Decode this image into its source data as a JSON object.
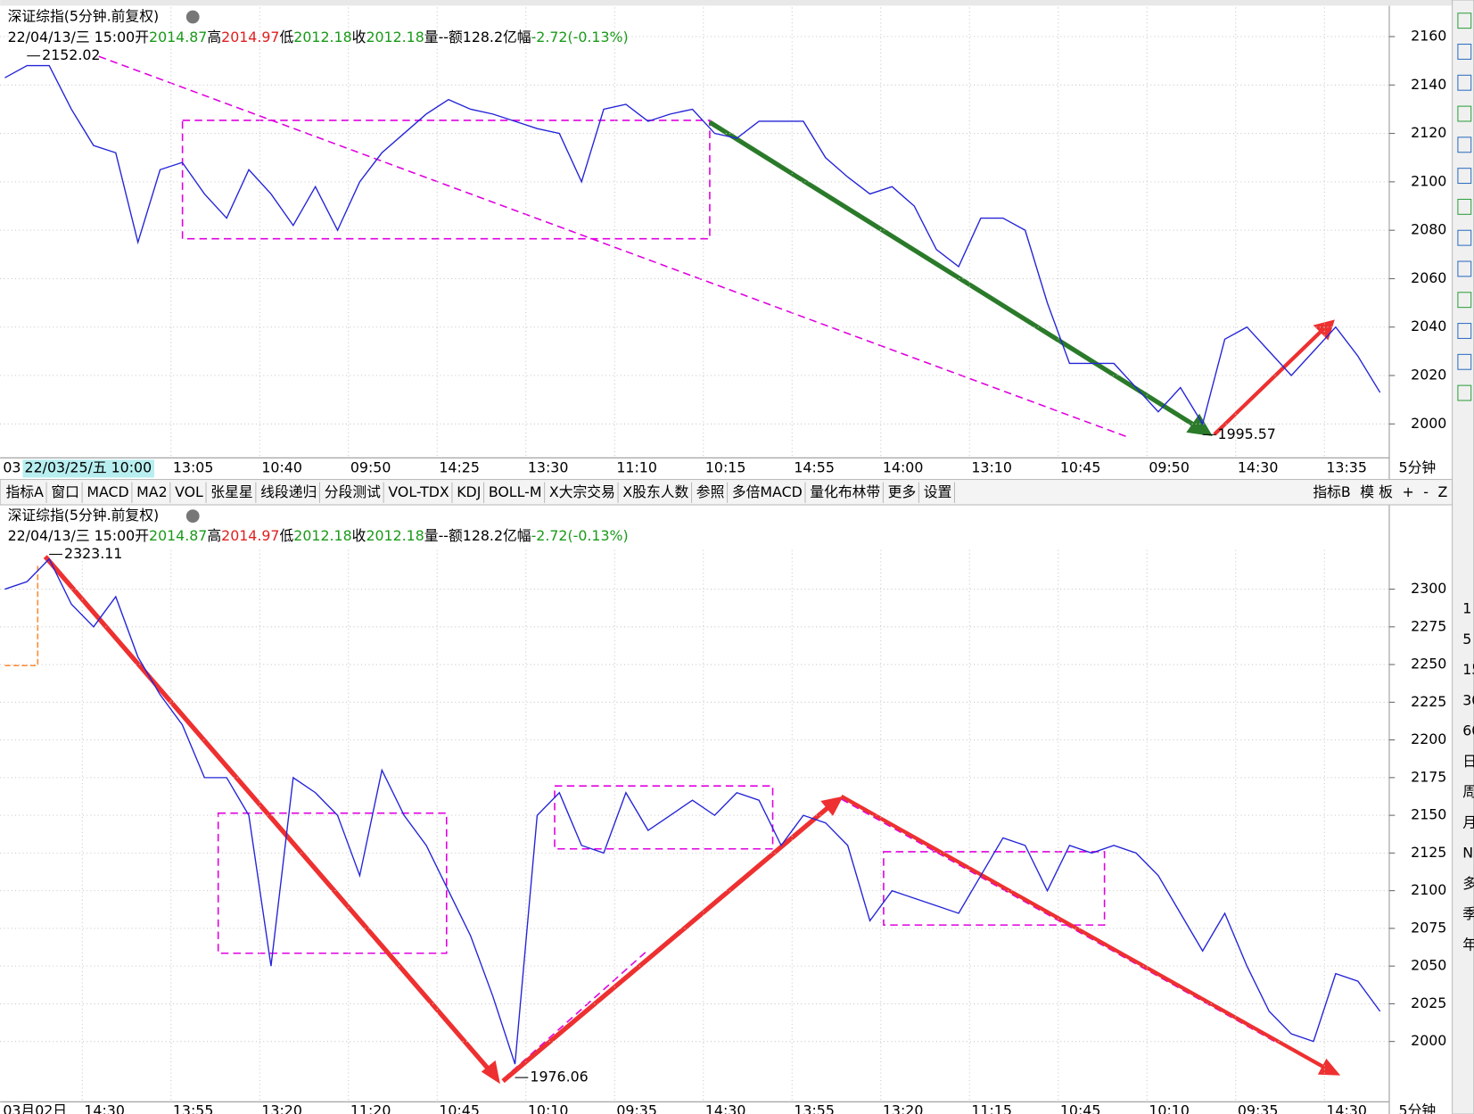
{
  "chart_data": [
    {
      "type": "line",
      "title": "深证综指(5分钟.前复权)",
      "info": [
        {
          "text": "22/04/13/三 15:00",
          "color": "#000000"
        },
        {
          "text": "开",
          "color": "#000000"
        },
        {
          "text": "2014.87",
          "color": "#1a9a1a"
        },
        {
          "text": "高",
          "color": "#000000"
        },
        {
          "text": "2014.97",
          "color": "#e02020"
        },
        {
          "text": "低",
          "color": "#000000"
        },
        {
          "text": "2012.18",
          "color": "#1a9a1a"
        },
        {
          "text": "收",
          "color": "#000000"
        },
        {
          "text": "2012.18",
          "color": "#1a9a1a"
        },
        {
          "text": "量--",
          "color": "#000000"
        },
        {
          "text": "额128.2亿",
          "color": "#000000"
        },
        {
          "text": "幅",
          "color": "#000000"
        },
        {
          "text": "-2.72(-0.13%)",
          "color": "#1a9a1a"
        }
      ],
      "cursor_label": "22/03/25/五 10:00",
      "categories": [
        "03",
        null,
        null,
        null,
        null,
        null,
        null,
        null,
        "13:05",
        null,
        null,
        null,
        "10:40",
        null,
        null,
        null,
        "09:50",
        null,
        null,
        null,
        "14:25",
        null,
        null,
        null,
        "13:30",
        null,
        null,
        null,
        "11:10",
        null,
        null,
        null,
        "10:15",
        null,
        null,
        null,
        "14:55",
        null,
        null,
        null,
        "14:00",
        null,
        null,
        null,
        "13:10",
        null,
        null,
        null,
        "10:45",
        null,
        null,
        null,
        "09:50",
        null,
        null,
        null,
        "14:30",
        null,
        null,
        null,
        "13:35",
        null,
        null
      ],
      "values": [
        2143,
        2148,
        2148,
        2130,
        2115,
        2112,
        2075,
        2105,
        2108,
        2095,
        2085,
        2105,
        2095,
        2082,
        2098,
        2080,
        2100,
        2112,
        2120,
        2128,
        2134,
        2130,
        2128,
        2125,
        2122,
        2120,
        2100,
        2130,
        2132,
        2125,
        2128,
        2130,
        2120,
        2118,
        2125,
        2125,
        2125,
        2110,
        2102,
        2095,
        2098,
        2090,
        2072,
        2065,
        2085,
        2085,
        2080,
        2050,
        2025,
        2025,
        2025,
        2015,
        2005,
        2015,
        2000,
        2035,
        2040,
        2030,
        2020,
        2030,
        2040,
        2028,
        2013
      ],
      "color": "#2424d8",
      "ylim": [
        1986,
        2172
      ],
      "yticks": [
        2000,
        2020,
        2040,
        2060,
        2080,
        2100,
        2120,
        2140,
        2160
      ],
      "grid": true,
      "high_label": 2152.02,
      "low_label": 1995.57,
      "period_label": "5分钟"
    },
    {
      "type": "line",
      "title": "深证综指(5分钟.前复权)",
      "info": [
        {
          "text": "22/04/13/三 15:00",
          "color": "#000000"
        },
        {
          "text": "开",
          "color": "#000000"
        },
        {
          "text": "2014.87",
          "color": "#1a9a1a"
        },
        {
          "text": "高",
          "color": "#000000"
        },
        {
          "text": "2014.97",
          "color": "#e02020"
        },
        {
          "text": "低",
          "color": "#000000"
        },
        {
          "text": "2012.18",
          "color": "#1a9a1a"
        },
        {
          "text": "收",
          "color": "#000000"
        },
        {
          "text": "2012.18",
          "color": "#1a9a1a"
        },
        {
          "text": "量--",
          "color": "#000000"
        },
        {
          "text": "额128.2亿",
          "color": "#000000"
        },
        {
          "text": "幅",
          "color": "#000000"
        },
        {
          "text": "-2.72(-0.13%)",
          "color": "#1a9a1a"
        }
      ],
      "categories": [
        "03月02日",
        null,
        null,
        null,
        "14:30",
        null,
        null,
        null,
        "13:55",
        null,
        null,
        null,
        "13:20",
        null,
        null,
        null,
        "11:20",
        null,
        null,
        null,
        "10:45",
        null,
        null,
        null,
        "10:10",
        null,
        null,
        null,
        "09:35",
        null,
        null,
        null,
        "14:30",
        null,
        null,
        null,
        "13:55",
        null,
        null,
        null,
        "13:20",
        null,
        null,
        null,
        "11:15",
        null,
        null,
        null,
        "10:45",
        null,
        null,
        null,
        "10:10",
        null,
        null,
        null,
        "09:35",
        null,
        null,
        null,
        "14:30",
        null,
        null
      ],
      "values": [
        2300,
        2305,
        2320,
        2290,
        2275,
        2295,
        2255,
        2230,
        2210,
        2175,
        2175,
        2150,
        2050,
        2175,
        2165,
        2150,
        2110,
        2180,
        2150,
        2130,
        2100,
        2070,
        2030,
        1985,
        2150,
        2165,
        2130,
        2125,
        2165,
        2140,
        2150,
        2160,
        2150,
        2165,
        2160,
        2130,
        2150,
        2145,
        2130,
        2080,
        2100,
        2095,
        2090,
        2085,
        2110,
        2135,
        2130,
        2100,
        2130,
        2125,
        2130,
        2125,
        2110,
        2085,
        2060,
        2085,
        2050,
        2020,
        2005,
        2000,
        2045,
        2040,
        2020
      ],
      "color": "#2424d8",
      "ylim": [
        1960,
        2326
      ],
      "yticks": [
        2000,
        2025,
        2050,
        2075,
        2100,
        2125,
        2150,
        2175,
        2200,
        2225,
        2250,
        2275,
        2300
      ],
      "grid": true,
      "high_label": 2323.11,
      "low_label": 1976.06,
      "period_label": "5分钟"
    }
  ],
  "toolbar": {
    "left": [
      {
        "text": "指标A"
      },
      {
        "text": "窗口"
      },
      {
        "text": "MACD"
      },
      {
        "text": "MA2"
      },
      {
        "text": "VOL"
      },
      {
        "text": "张星星"
      },
      {
        "text": "线段递归"
      },
      {
        "text": "分段测试"
      },
      {
        "text": "VOL-TDX"
      },
      {
        "text": "KDJ"
      },
      {
        "text": "BOLL-M"
      },
      {
        "text": "X大宗交易"
      },
      {
        "text": "X股东人数"
      },
      {
        "text": "参照"
      },
      {
        "text": "多倍MACD"
      },
      {
        "text": "量化布林带"
      },
      {
        "text": "更多"
      },
      {
        "text": "设置",
        "color": "#e00000"
      }
    ],
    "right": [
      {
        "text": "指标B"
      },
      {
        "text": "模 板"
      },
      {
        "text": "+"
      },
      {
        "text": "-"
      },
      {
        "text": "Z"
      }
    ]
  },
  "side_labels": [
    "1",
    "5",
    "15",
    "30",
    "60",
    "日",
    "周",
    "月",
    "N",
    "多",
    "季",
    "年"
  ]
}
